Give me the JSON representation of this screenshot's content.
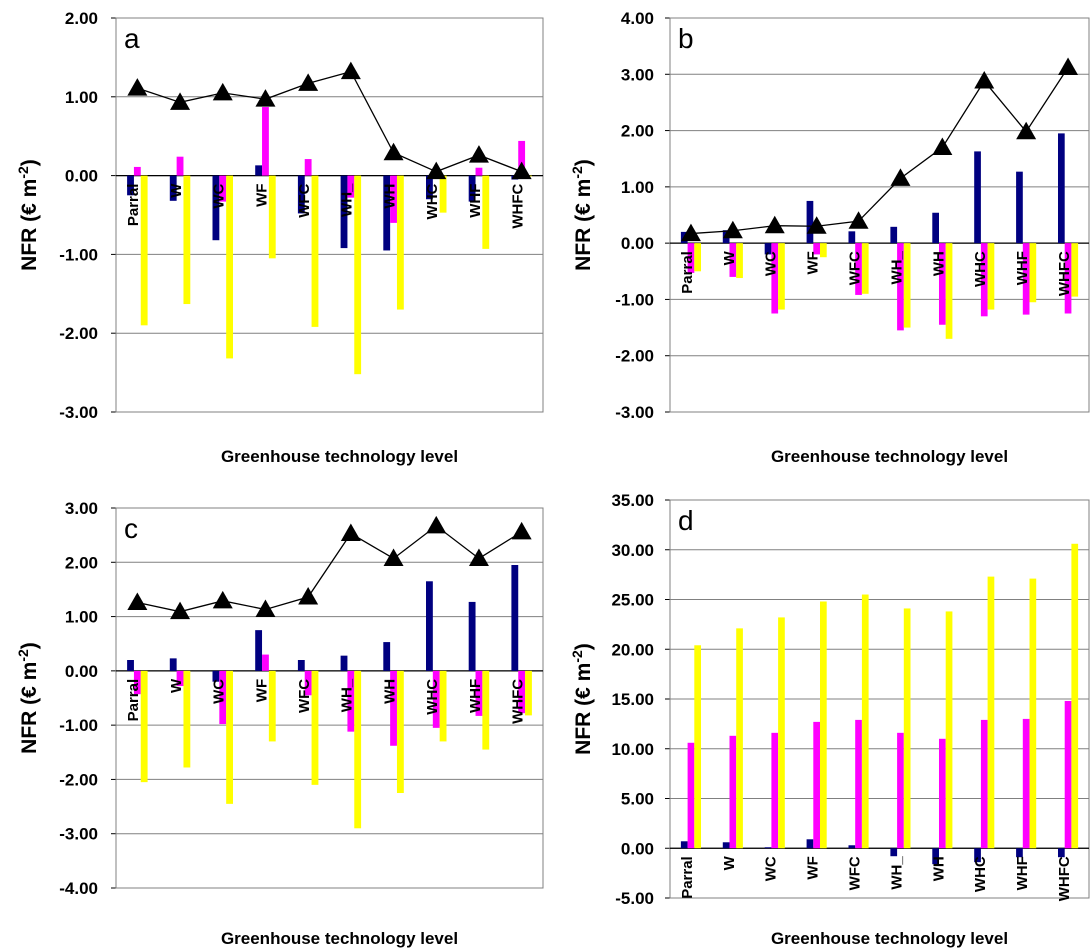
{
  "colors": {
    "series1": "#000080",
    "series2": "#ff00ff",
    "series3": "#ffff00",
    "line": "#000000",
    "grid": "#808080"
  },
  "chart_data": [
    {
      "type": "bar",
      "panel_label": "a",
      "xlabel": "Greenhouse technology level",
      "ylabel": "NFR (€ m-2)",
      "ylim": [
        -3,
        2
      ],
      "ytick_step": 1,
      "categories": [
        "Parral",
        "W",
        "WC",
        "WF",
        "WFC",
        "WH_",
        "WH",
        "WHC",
        "WHF",
        "WHFC"
      ],
      "series": [
        {
          "values": [
            -0.25,
            -0.32,
            -0.82,
            0.13,
            -0.48,
            -0.92,
            -0.95,
            -0.3,
            -0.33,
            -0.05
          ]
        },
        {
          "values": [
            0.11,
            0.24,
            -0.33,
            0.87,
            0.21,
            -0.28,
            -0.6,
            0.0,
            0.1,
            0.44
          ]
        },
        {
          "values": [
            -1.9,
            -1.63,
            -2.32,
            -1.05,
            -1.92,
            -2.52,
            -1.7,
            -0.47,
            -0.93,
            -0.01
          ]
        }
      ],
      "line": [
        1.11,
        0.93,
        1.05,
        0.97,
        1.17,
        1.32,
        0.29,
        0.05,
        0.26,
        0.05
      ]
    },
    {
      "type": "bar",
      "panel_label": "b",
      "xlabel": "Greenhouse technology level",
      "ylabel": "NFR (€ m-2)",
      "ylim": [
        -3,
        4
      ],
      "ytick_step": 1,
      "categories": [
        "Parral",
        "W",
        "WC",
        "WF",
        "WFC",
        "WH_",
        "WH",
        "WHC",
        "WHF",
        "WHFC"
      ],
      "series": [
        {
          "values": [
            0.2,
            0.23,
            -0.2,
            0.75,
            0.21,
            0.29,
            0.54,
            1.63,
            1.27,
            1.95
          ]
        },
        {
          "values": [
            -0.53,
            -0.6,
            -1.25,
            -0.2,
            -0.92,
            -1.55,
            -1.45,
            -1.3,
            -1.27,
            -1.25
          ]
        },
        {
          "values": [
            -0.5,
            -0.62,
            -1.18,
            -0.25,
            -0.9,
            -1.5,
            -1.7,
            -1.18,
            -1.05,
            -0.95
          ]
        }
      ],
      "line": [
        0.17,
        0.22,
        0.31,
        0.3,
        0.39,
        1.15,
        1.7,
        2.88,
        1.98,
        3.12
      ]
    },
    {
      "type": "bar",
      "panel_label": "c",
      "xlabel": "Greenhouse technology level",
      "ylabel": "NFR (€ m-2)",
      "ylim": [
        -4,
        3
      ],
      "ytick_step": 1,
      "categories": [
        "Parral",
        "W",
        "WC",
        "WF",
        "WFC",
        "WH_",
        "WH",
        "WHC",
        "WHF",
        "WHFC"
      ],
      "series": [
        {
          "values": [
            0.2,
            0.23,
            -0.2,
            0.75,
            0.2,
            0.28,
            0.53,
            1.65,
            1.27,
            1.95
          ]
        },
        {
          "values": [
            -0.43,
            -0.28,
            -0.98,
            0.3,
            -0.45,
            -1.12,
            -1.38,
            -1.05,
            -0.83,
            -0.78
          ]
        },
        {
          "values": [
            -2.05,
            -1.78,
            -2.45,
            -1.3,
            -2.1,
            -2.9,
            -2.25,
            -1.3,
            -1.45,
            -0.82
          ]
        }
      ],
      "line": [
        1.26,
        1.09,
        1.29,
        1.13,
        1.36,
        2.53,
        2.07,
        2.67,
        2.07,
        2.56
      ]
    },
    {
      "type": "bar",
      "panel_label": "d",
      "xlabel": "Greenhouse technology level",
      "ylabel": "NFR (€ m-2)",
      "ylim": [
        -5,
        35
      ],
      "ytick_step": 5,
      "categories": [
        "Parral",
        "W",
        "WC",
        "WF",
        "WFC",
        "WH_",
        "WH",
        "WHC",
        "WHF",
        "WHFC"
      ],
      "series": [
        {
          "values": [
            0.7,
            0.6,
            0.1,
            0.9,
            0.3,
            -0.8,
            -1.6,
            -1.4,
            -0.9,
            -0.9
          ]
        },
        {
          "values": [
            10.6,
            11.3,
            11.6,
            12.7,
            12.9,
            11.6,
            11.0,
            12.9,
            13.0,
            14.8
          ]
        },
        {
          "values": [
            20.4,
            22.1,
            23.2,
            24.8,
            25.5,
            24.1,
            23.8,
            27.3,
            27.1,
            30.6
          ]
        }
      ],
      "line": null
    }
  ]
}
